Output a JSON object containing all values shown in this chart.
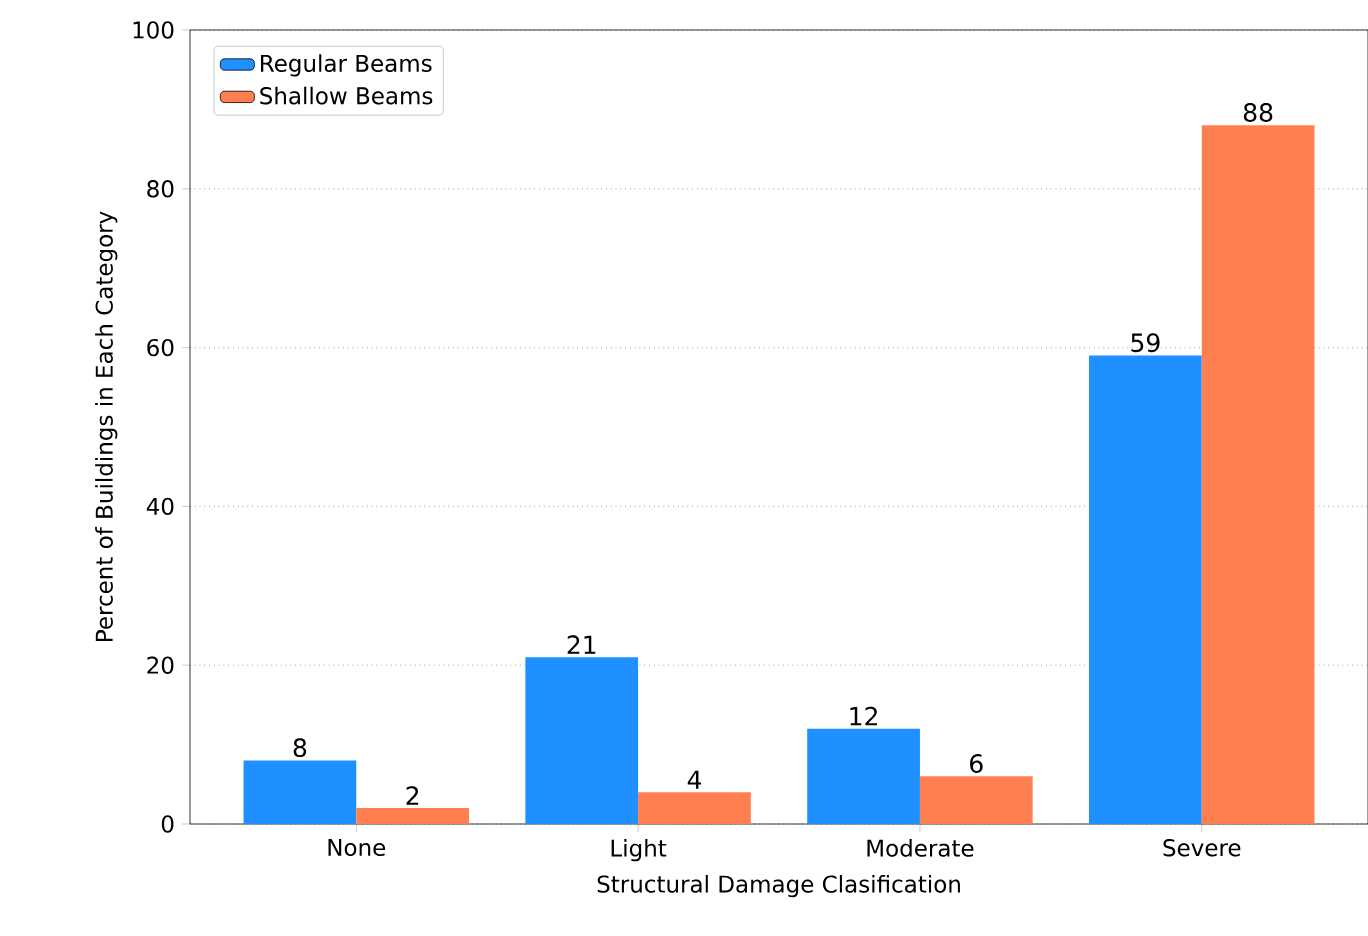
{
  "chart_data": {
    "type": "bar",
    "xlabel": "Structural Damage Clasification",
    "ylabel": "Percent of Buildings in Each Category",
    "categories": [
      "None",
      "Light",
      "Moderate",
      "Severe"
    ],
    "series": [
      {
        "name": "Regular Beams",
        "color": "#1e90ff",
        "values": [
          8,
          21,
          12,
          59
        ]
      },
      {
        "name": "Shallow Beams",
        "color": "#ff7f50",
        "values": [
          2,
          4,
          6,
          88
        ]
      }
    ],
    "ylim": [
      0,
      100
    ],
    "yticks": [
      0,
      20,
      40,
      60,
      80,
      100
    ],
    "grid": "y",
    "legend": "top left",
    "data_labels": true
  }
}
